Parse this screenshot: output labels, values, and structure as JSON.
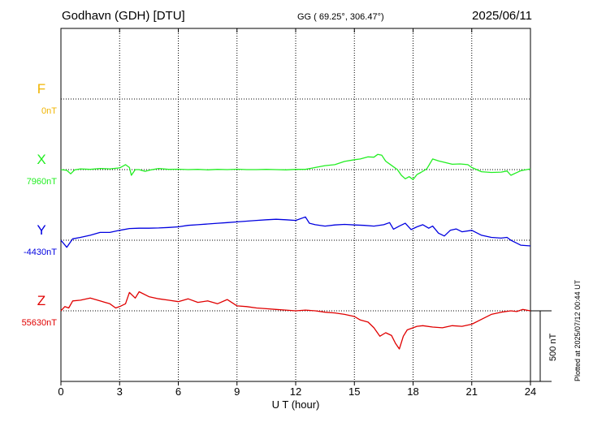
{
  "header": {
    "station": "Godhavn (GDH)  [DTU]",
    "coords": "GG ( 69.25°, 306.47°)",
    "date": "2025/06/11"
  },
  "footer": {
    "plotted": "Plotted at 2025/07/12 00:44 UT"
  },
  "chart_data": {
    "type": "line",
    "xlabel": "U T (hour)",
    "xlim": [
      0,
      24
    ],
    "xticks": [
      0,
      3,
      6,
      9,
      12,
      15,
      18,
      21,
      24
    ],
    "scale_bar_label": "500 nT",
    "series": [
      {
        "name": "F",
        "baseline_label": "0nT",
        "color": "#f0b400",
        "x": [],
        "y": []
      },
      {
        "name": "X",
        "baseline_label": "7960nT",
        "color": "#22ee22",
        "x": [
          0,
          0.3,
          0.5,
          0.7,
          1,
          1.5,
          2,
          2.5,
          3,
          3.3,
          3.5,
          3.6,
          3.8,
          4,
          4.3,
          4.6,
          5,
          5.5,
          6,
          6.5,
          7,
          7.5,
          8,
          8.5,
          9,
          9.5,
          10,
          10.5,
          11,
          11.5,
          12,
          12.5,
          13,
          13.5,
          14,
          14.5,
          15,
          15.3,
          15.7,
          16,
          16.2,
          16.4,
          16.6,
          16.9,
          17.2,
          17.4,
          17.6,
          17.8,
          18,
          18.2,
          18.4,
          18.7,
          19,
          19.3,
          19.6,
          20,
          20.4,
          20.8,
          21,
          21.5,
          22,
          22.5,
          22.8,
          23,
          23.5,
          24
        ],
        "y": [
          7960,
          7955,
          7930,
          7958,
          7965,
          7962,
          7968,
          7965,
          7972,
          7995,
          7975,
          7920,
          7960,
          7960,
          7948,
          7958,
          7968,
          7962,
          7963,
          7960,
          7962,
          7958,
          7962,
          7960,
          7963,
          7960,
          7960,
          7962,
          7960,
          7958,
          7962,
          7962,
          7975,
          7988,
          7995,
          8018,
          8030,
          8035,
          8050,
          8048,
          8068,
          8062,
          8020,
          7990,
          7960,
          7920,
          7895,
          7910,
          7890,
          7925,
          7940,
          7965,
          8035,
          8022,
          8012,
          7998,
          8000,
          7995,
          7975,
          7945,
          7940,
          7942,
          7950,
          7920,
          7952,
          7965
        ]
      },
      {
        "name": "Y",
        "baseline_label": "-4430nT",
        "color": "#0000e0",
        "x": [
          0,
          0.3,
          0.6,
          1,
          1.5,
          2,
          2.5,
          3,
          3.5,
          4,
          4.5,
          5,
          5.5,
          6,
          6.5,
          7,
          7.5,
          8,
          8.5,
          9,
          9.5,
          10,
          10.5,
          11,
          11.5,
          12,
          12.5,
          12.7,
          13,
          13.5,
          14,
          14.5,
          15,
          15.5,
          16,
          16.5,
          16.8,
          17,
          17.3,
          17.6,
          17.9,
          18.2,
          18.5,
          18.8,
          19,
          19.3,
          19.6,
          19.9,
          20.2,
          20.5,
          21,
          21.5,
          22,
          22.5,
          22.8,
          23,
          23.5,
          24
        ],
        "y": [
          -4430,
          -4480,
          -4420,
          -4410,
          -4395,
          -4375,
          -4375,
          -4360,
          -4347,
          -4345,
          -4345,
          -4343,
          -4340,
          -4335,
          -4325,
          -4320,
          -4315,
          -4310,
          -4305,
          -4300,
          -4295,
          -4290,
          -4285,
          -4282,
          -4285,
          -4290,
          -4265,
          -4310,
          -4320,
          -4330,
          -4322,
          -4318,
          -4322,
          -4325,
          -4330,
          -4320,
          -4305,
          -4352,
          -4330,
          -4310,
          -4355,
          -4335,
          -4320,
          -4345,
          -4330,
          -4380,
          -4400,
          -4360,
          -4350,
          -4370,
          -4360,
          -4395,
          -4410,
          -4415,
          -4410,
          -4430,
          -4465,
          -4470
        ]
      },
      {
        "name": "Z",
        "baseline_label": "55630nT",
        "color": "#e00000",
        "x": [
          0,
          0.2,
          0.4,
          0.6,
          1,
          1.5,
          2,
          2.5,
          2.8,
          3,
          3.3,
          3.5,
          3.8,
          4,
          4.5,
          5,
          5.5,
          6,
          6.5,
          7,
          7.5,
          8,
          8.5,
          9,
          9.5,
          10,
          10.5,
          11,
          11.5,
          12,
          12.5,
          13,
          13.5,
          14,
          14.5,
          15,
          15.3,
          15.7,
          16,
          16.3,
          16.6,
          16.9,
          17.1,
          17.3,
          17.5,
          17.7,
          17.9,
          18.2,
          18.5,
          19,
          19.5,
          20,
          20.5,
          21,
          21.5,
          22,
          22.5,
          23,
          23.3,
          23.6,
          24
        ],
        "y": [
          55630,
          55660,
          55650,
          55700,
          55705,
          55720,
          55700,
          55680,
          55650,
          55660,
          55680,
          55760,
          55720,
          55765,
          55730,
          55715,
          55705,
          55695,
          55715,
          55690,
          55700,
          55680,
          55710,
          55665,
          55660,
          55650,
          55645,
          55640,
          55635,
          55630,
          55635,
          55630,
          55620,
          55615,
          55605,
          55590,
          55565,
          55550,
          55510,
          55450,
          55475,
          55455,
          55400,
          55360,
          55450,
          55495,
          55505,
          55520,
          55525,
          55515,
          55510,
          55525,
          55520,
          55535,
          55570,
          55605,
          55620,
          55630,
          55625,
          55640,
          55630
        ]
      }
    ]
  }
}
